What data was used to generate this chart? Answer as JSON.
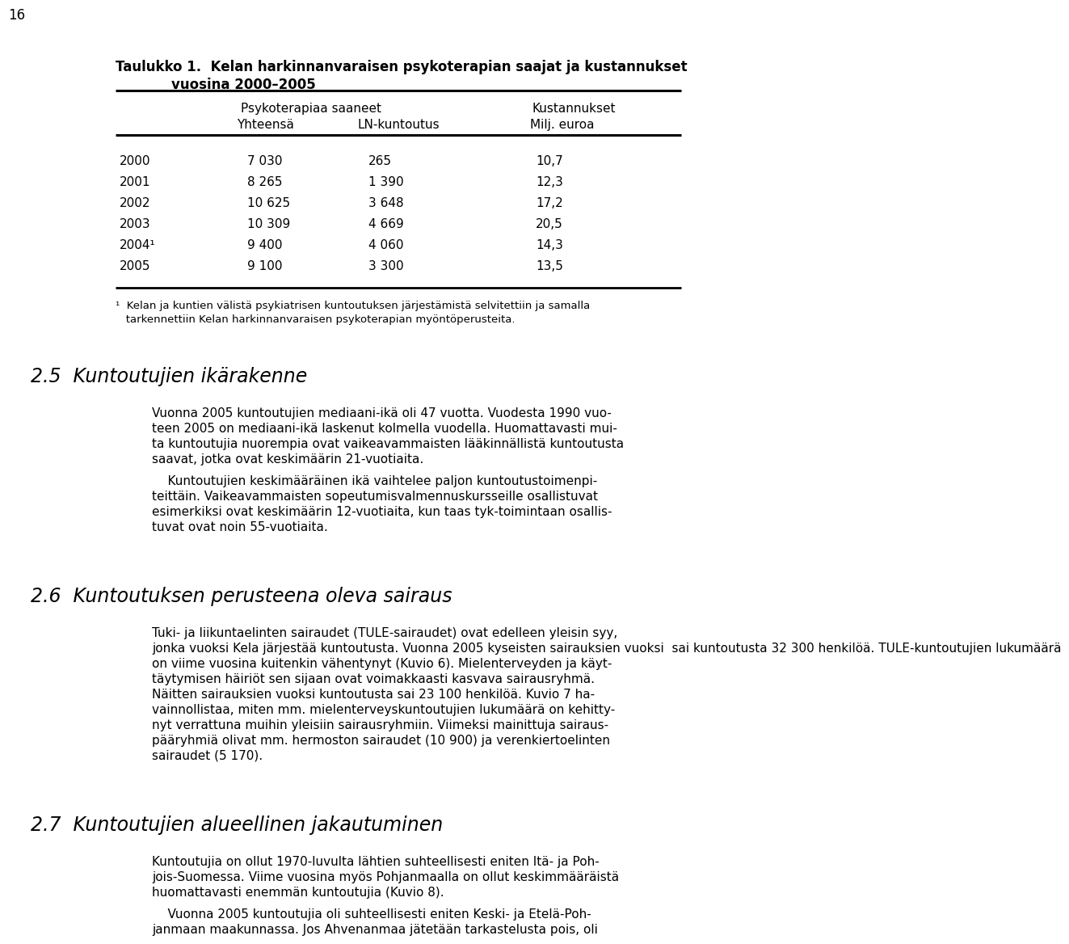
{
  "page_number": "16",
  "bg_color": "#ffffff",
  "table_title_line1_bold": "Taulukko 1.",
  "table_title_line1_rest": "  Kelan harkinnanvaraisen psykoterapian saajat ja kustannukset",
  "table_title_line2": "            vuosina 2000–2005",
  "col_header_group1": "Psykoterapiaa saaneet",
  "col_header1a": "Yhteensä",
  "col_header1b": "LN-kuntoutus",
  "col_header_group2": "Kustannukset",
  "col_header2a": "Milj. euroa",
  "table_rows": [
    [
      "2000",
      "7 030",
      "265",
      "10,7"
    ],
    [
      "2001",
      "8 265",
      "1 390",
      "12,3"
    ],
    [
      "2002",
      "10 625",
      "3 648",
      "17,2"
    ],
    [
      "2003",
      "10 309",
      "4 669",
      "20,5"
    ],
    [
      "2004¹",
      "9 400",
      "4 060",
      "14,3"
    ],
    [
      "2005",
      "9 100",
      "3 300",
      "13,5"
    ]
  ],
  "footnote_line1": "¹  Kelan ja kuntien välistä psykiatrisen kuntoutuksen järjestämistä selvitettiin ja samalla",
  "footnote_line2": "   tarkennettiin Kelan harkinnanvaraisen psykoterapian myöntöperusteita.",
  "section_25_heading": "2.5  Kuntoutujien ikärakenne",
  "section_25_lines1": [
    "Vuonna 2005 kuntoutujien mediaani-ikä oli 47 vuotta. Vuodesta 1990 vuo-",
    "teen 2005 on mediaani-ikä laskenut kolmella vuodella. Huomattavasti mui-",
    "ta kuntoutujia nuorempia ovat vaikeavammaisten lääkinnällistä kuntoutusta",
    "saavat, jotka ovat keskimäärin 21-vuotiaita."
  ],
  "section_25_lines2": [
    "    Kuntoutujien keskimääräinen ikä vaihtelee paljon kuntoutustoimenpi-",
    "teittäin. Vaikeavammaisten sopeutumisvalmennuskursseille osallistuvat",
    "esimerkiksi ovat keskimäärin 12-vuotiaita, kun taas tyk-toimintaan osallis-",
    "tuvat ovat noin 55-vuotiaita."
  ],
  "section_26_heading": "2.6  Kuntoutuksen perusteena oleva sairaus",
  "section_26_lines": [
    "Tuki- ja liikuntaelinten sairaudet (TULE-sairaudet) ovat edelleen yleisin syy,",
    "jonka vuoksi Kela järjestää kuntoutusta. Vuonna 2005 kyseisten sairauksien vuoksi  sai kuntoutusta 32 300 henkilöä. TULE-kuntoutujien lukumäärä",
    "on viime vuosina kuitenkin vähentynyt (Kuvio 6). Mielenterveyden ja käyt-",
    "täytymisen häiriöt sen sijaan ovat voimakkaasti kasvava sairausryhmä.",
    "Näitten sairauksien vuoksi kuntoutusta sai 23 100 henkilöä. Kuvio 7 ha-",
    "vainnollistaa, miten mm. mielenterveyskuntoutujien lukumäärä on kehitty-",
    "nyt verrattuna muihin yleisiin sairausryhmiin. Viimeksi mainittuja sairaus-",
    "pääryhmiä olivat mm. hermoston sairaudet (10 900) ja verenkiertoelinten",
    "sairaudet (5 170)."
  ],
  "section_27_heading": "2.7  Kuntoutujien alueellinen jakautuminen",
  "section_27_lines1": [
    "Kuntoutujia on ollut 1970-luvulta lähtien suhteellisesti eniten Itä- ja Poh-",
    "jois-Suomessa. Viime vuosina myös Pohjanmaalla on ollut keskimmääräistä",
    "huomattavasti enemmän kuntoutujia (Kuvio 8)."
  ],
  "section_27_lines2": [
    "    Vuonna 2005 kuntoutujia oli suhteellisesti eniten Keski- ja Etelä-Poh-",
    "janmaan maakunnassa. Jos Ahvenanmaa jätetään tarkastelusta pois, oli"
  ]
}
